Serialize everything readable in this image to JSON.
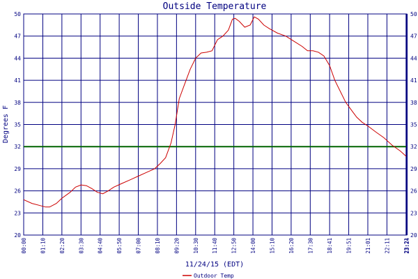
{
  "chart_data": {
    "type": "line",
    "title": "Outside Temperature",
    "xlabel": "11/24/15 (EDT)",
    "ylabel": "Degrees F",
    "x_tick_labels": [
      "00:00",
      "01:10",
      "02:20",
      "03:30",
      "04:40",
      "05:50",
      "07:00",
      "08:10",
      "09:20",
      "10:30",
      "11:40",
      "12:50",
      "14:00",
      "15:10",
      "16:20",
      "17:30",
      "18:41",
      "19:51",
      "21:01",
      "22:11",
      "23:21",
      "23:24"
    ],
    "y_ticks": [
      20,
      23,
      26,
      29,
      32,
      35,
      38,
      41,
      44,
      47,
      50
    ],
    "ylim": [
      20,
      50
    ],
    "grid": true,
    "reference_line": {
      "y": 32,
      "color": "#006400"
    },
    "legend": {
      "placement": "bottom-center",
      "label": "Outdoor Temp",
      "color": "#cc0000"
    },
    "series": [
      {
        "name": "Outdoor Temp",
        "color": "#cc0000",
        "x": [
          "00:00",
          "00:30",
          "01:00",
          "01:20",
          "01:35",
          "02:00",
          "02:20",
          "02:50",
          "03:10",
          "03:30",
          "03:50",
          "04:10",
          "04:30",
          "04:50",
          "05:10",
          "05:30",
          "06:00",
          "06:30",
          "07:00",
          "07:30",
          "08:00",
          "08:20",
          "08:40",
          "09:00",
          "09:15",
          "09:30",
          "09:50",
          "10:10",
          "10:30",
          "10:50",
          "11:10",
          "11:30",
          "11:50",
          "12:10",
          "12:30",
          "12:45",
          "12:55",
          "13:10",
          "13:30",
          "13:50",
          "14:05",
          "14:20",
          "14:40",
          "15:00",
          "15:30",
          "16:00",
          "16:30",
          "17:00",
          "17:20",
          "17:40",
          "18:00",
          "18:20",
          "18:41",
          "19:00",
          "19:20",
          "19:40",
          "20:00",
          "20:20",
          "20:40",
          "21:01",
          "21:30",
          "22:00",
          "22:30",
          "23:00",
          "23:24"
        ],
        "values": [
          24.8,
          24.3,
          24.0,
          23.8,
          23.8,
          24.3,
          25.0,
          25.8,
          26.5,
          26.8,
          26.7,
          26.3,
          25.8,
          25.6,
          26.0,
          26.5,
          27.0,
          27.5,
          28.0,
          28.5,
          29.0,
          29.7,
          30.5,
          32.5,
          35.0,
          38.5,
          40.5,
          42.5,
          44.0,
          44.7,
          44.8,
          45.0,
          46.5,
          47.0,
          47.8,
          49.3,
          49.4,
          49.0,
          48.2,
          48.5,
          49.6,
          49.3,
          48.5,
          48.0,
          47.4,
          47.0,
          46.3,
          45.6,
          45.0,
          45.0,
          44.8,
          44.3,
          43.0,
          41.0,
          39.5,
          38.0,
          37.0,
          36.0,
          35.3,
          34.8,
          34.0,
          33.2,
          32.2,
          31.4,
          30.6
        ]
      }
    ]
  }
}
